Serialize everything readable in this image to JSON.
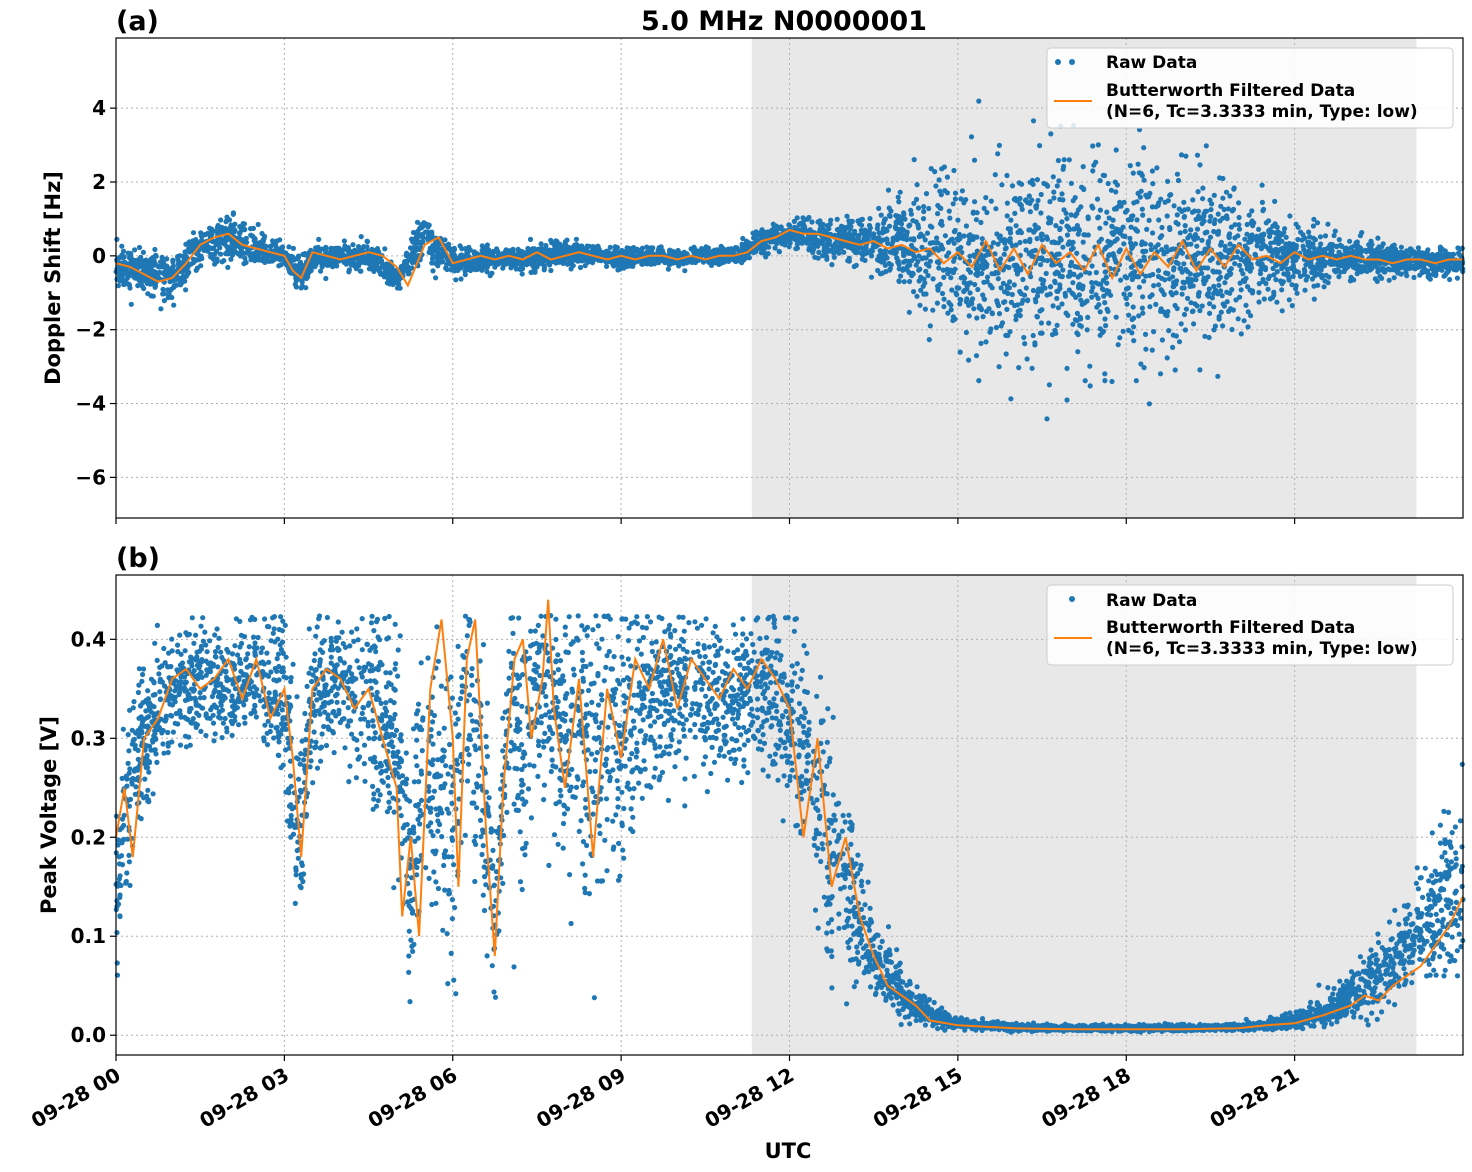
{
  "figure": {
    "title": "5.0 MHz N0000001",
    "xlabel": "UTC"
  },
  "colors": {
    "raw": "#1f77b4",
    "filtered": "#ff7f0e",
    "night_shade": "#e8e8e8"
  },
  "legend": {
    "raw": "Raw Data",
    "filtered_line1": "Butterworth Filtered Data",
    "filtered_line2": "(N=6, Tc=3.3333 min, Type: low)"
  },
  "chart_data": [
    {
      "type": "scatter",
      "panel_label": "(a)",
      "ylabel": "Doppler Shift [Hz]",
      "xlim_hours": [
        0,
        24
      ],
      "ylim": [
        -7.1,
        5.9
      ],
      "yticks": [
        4,
        2,
        0,
        -2,
        -4,
        -6
      ],
      "ytick_labels": [
        "4",
        "2",
        "0",
        "−2",
        "−4",
        "−6"
      ],
      "grid": true,
      "legend_position": "top-right",
      "shaded_interval_hours": [
        11.33,
        23.17
      ],
      "series": [
        {
          "name": "Raw Data",
          "style": "points",
          "x_hours": [
            0,
            0.5,
            1,
            1.5,
            2,
            2.5,
            3,
            3.3,
            3.5,
            4,
            4.5,
            5,
            5.5,
            6,
            6.5,
            7,
            7.5,
            8,
            8.5,
            9,
            9.5,
            10,
            10.5,
            11,
            11.5,
            12,
            12.5,
            13,
            13.5,
            14,
            14.5,
            15,
            15.5,
            16,
            16.5,
            17,
            17.5,
            18,
            18.5,
            19,
            19.5,
            20,
            20.5,
            21,
            21.5,
            22,
            22.5,
            23,
            23.5,
            24
          ],
          "center": [
            -0.3,
            -0.4,
            -0.6,
            0.2,
            0.5,
            0.2,
            0.0,
            -0.5,
            -0.1,
            0.0,
            0.0,
            -0.6,
            0.5,
            -0.2,
            -0.1,
            -0.1,
            -0.1,
            0.1,
            0.0,
            -0.1,
            0.0,
            -0.1,
            0.0,
            0.0,
            0.4,
            0.6,
            0.5,
            0.4,
            0.3,
            0.3,
            0.1,
            0.0,
            -0.1,
            -0.1,
            0.0,
            0.0,
            -0.2,
            -0.1,
            -0.1,
            -0.1,
            -0.1,
            -0.1,
            0.0,
            0.0,
            0.0,
            -0.1,
            -0.1,
            -0.1,
            -0.2,
            -0.2
          ],
          "spread": [
            0.5,
            0.5,
            0.5,
            0.5,
            0.6,
            0.4,
            0.3,
            0.5,
            0.35,
            0.3,
            0.3,
            0.4,
            0.5,
            0.35,
            0.3,
            0.3,
            0.3,
            0.3,
            0.25,
            0.25,
            0.2,
            0.2,
            0.2,
            0.2,
            0.3,
            0.3,
            0.4,
            0.5,
            0.7,
            1.0,
            1.5,
            1.9,
            2.1,
            2.3,
            2.4,
            2.5,
            2.6,
            2.5,
            2.4,
            2.2,
            2.0,
            1.6,
            1.2,
            0.9,
            0.6,
            0.5,
            0.4,
            0.4,
            0.35,
            0.35
          ]
        },
        {
          "name": "Butterworth Filtered Data",
          "style": "line",
          "x_hours": [
            0,
            0.25,
            0.5,
            0.75,
            1,
            1.25,
            1.5,
            1.75,
            2,
            2.25,
            2.5,
            2.75,
            3,
            3.15,
            3.3,
            3.5,
            3.75,
            4,
            4.25,
            4.5,
            4.75,
            5,
            5.2,
            5.5,
            5.75,
            6,
            6.25,
            6.5,
            6.75,
            7,
            7.25,
            7.5,
            7.75,
            8,
            8.25,
            8.5,
            8.75,
            9,
            9.25,
            9.5,
            9.75,
            10,
            10.25,
            10.5,
            10.75,
            11,
            11.25,
            11.5,
            11.75,
            12,
            12.25,
            12.5,
            12.75,
            13,
            13.25,
            13.5,
            13.75,
            14,
            14.25,
            14.5,
            14.75,
            15,
            15.25,
            15.5,
            15.75,
            16,
            16.25,
            16.5,
            16.75,
            17,
            17.25,
            17.5,
            17.75,
            18,
            18.25,
            18.5,
            18.75,
            19,
            19.25,
            19.5,
            19.75,
            20,
            20.25,
            20.5,
            20.75,
            21,
            21.25,
            21.5,
            21.75,
            22,
            22.25,
            22.5,
            22.75,
            23,
            23.25,
            23.5,
            23.75,
            24
          ],
          "y": [
            -0.2,
            -0.3,
            -0.5,
            -0.7,
            -0.6,
            -0.2,
            0.3,
            0.5,
            0.6,
            0.3,
            0.2,
            0.1,
            0.0,
            -0.4,
            -0.6,
            0.1,
            0.0,
            -0.1,
            0.0,
            0.1,
            0.0,
            -0.3,
            -0.8,
            0.3,
            0.5,
            -0.2,
            -0.1,
            0.0,
            -0.1,
            0.0,
            -0.1,
            0.1,
            -0.1,
            0.0,
            0.1,
            0.0,
            -0.1,
            0.0,
            -0.1,
            0.0,
            0.0,
            -0.1,
            0.0,
            -0.1,
            0.0,
            0.0,
            0.1,
            0.4,
            0.5,
            0.7,
            0.6,
            0.6,
            0.5,
            0.4,
            0.3,
            0.4,
            0.2,
            0.3,
            0.1,
            0.2,
            -0.2,
            0.1,
            -0.3,
            0.4,
            -0.4,
            0.2,
            -0.5,
            0.3,
            -0.2,
            0.1,
            -0.4,
            0.3,
            -0.6,
            0.2,
            -0.5,
            0.1,
            -0.3,
            0.4,
            -0.4,
            0.2,
            -0.3,
            0.3,
            -0.1,
            0.0,
            -0.2,
            0.1,
            -0.1,
            0.0,
            -0.1,
            0.0,
            -0.1,
            -0.1,
            -0.2,
            -0.1,
            -0.1,
            -0.2,
            -0.1,
            -0.1
          ]
        }
      ]
    },
    {
      "type": "scatter",
      "panel_label": "(b)",
      "ylabel": "Peak Voltage [V]",
      "xlim_hours": [
        0,
        24
      ],
      "ylim": [
        -0.02,
        0.465
      ],
      "yticks": [
        0.0,
        0.1,
        0.2,
        0.3,
        0.4
      ],
      "ytick_labels": [
        "0.0",
        "0.1",
        "0.2",
        "0.3",
        "0.4"
      ],
      "xtick_hours": [
        0,
        3,
        6,
        9,
        12,
        15,
        18,
        21
      ],
      "xtick_labels": [
        "09-28 00",
        "09-28 03",
        "09-28 06",
        "09-28 09",
        "09-28 12",
        "09-28 15",
        "09-28 18",
        "09-28 21"
      ],
      "grid": true,
      "legend_position": "top-right",
      "shaded_interval_hours": [
        11.33,
        23.17
      ],
      "series": [
        {
          "name": "Raw Data",
          "style": "points",
          "x_hours": [
            0,
            0.25,
            0.5,
            1,
            1.5,
            2,
            2.5,
            3,
            3.25,
            3.5,
            4,
            4.5,
            5,
            5.25,
            5.5,
            6,
            6.25,
            6.5,
            6.75,
            7,
            7.25,
            7.5,
            8,
            8.5,
            9,
            9.5,
            10,
            10.5,
            11,
            11.5,
            12,
            12.5,
            12.75,
            13,
            13.5,
            14,
            14.5,
            15,
            16,
            17,
            18,
            19,
            20,
            20.5,
            21,
            21.5,
            22,
            22.5,
            23,
            23.5,
            24
          ],
          "center": [
            0.15,
            0.25,
            0.3,
            0.35,
            0.36,
            0.35,
            0.37,
            0.35,
            0.2,
            0.34,
            0.36,
            0.33,
            0.3,
            0.15,
            0.3,
            0.2,
            0.33,
            0.28,
            0.1,
            0.33,
            0.3,
            0.35,
            0.3,
            0.28,
            0.3,
            0.33,
            0.35,
            0.34,
            0.34,
            0.35,
            0.33,
            0.25,
            0.2,
            0.15,
            0.08,
            0.04,
            0.02,
            0.012,
            0.008,
            0.007,
            0.007,
            0.007,
            0.008,
            0.01,
            0.015,
            0.025,
            0.04,
            0.06,
            0.09,
            0.12,
            0.16
          ],
          "spread": [
            0.08,
            0.08,
            0.06,
            0.05,
            0.05,
            0.05,
            0.05,
            0.08,
            0.1,
            0.07,
            0.06,
            0.08,
            0.1,
            0.1,
            0.12,
            0.15,
            0.1,
            0.13,
            0.08,
            0.08,
            0.12,
            0.08,
            0.12,
            0.13,
            0.13,
            0.08,
            0.07,
            0.07,
            0.07,
            0.06,
            0.08,
            0.1,
            0.1,
            0.08,
            0.04,
            0.02,
            0.01,
            0.005,
            0.003,
            0.003,
            0.003,
            0.003,
            0.003,
            0.005,
            0.008,
            0.012,
            0.02,
            0.03,
            0.04,
            0.06,
            0.1
          ]
        },
        {
          "name": "Butterworth Filtered Data",
          "style": "line",
          "x_hours": [
            0,
            0.15,
            0.3,
            0.5,
            0.75,
            1,
            1.25,
            1.5,
            1.75,
            2,
            2.25,
            2.5,
            2.75,
            3,
            3.15,
            3.3,
            3.5,
            3.75,
            4,
            4.25,
            4.5,
            4.75,
            5,
            5.1,
            5.25,
            5.4,
            5.6,
            5.8,
            6,
            6.1,
            6.25,
            6.4,
            6.6,
            6.75,
            6.9,
            7.1,
            7.25,
            7.4,
            7.6,
            7.7,
            7.8,
            8,
            8.25,
            8.5,
            8.75,
            9,
            9.25,
            9.5,
            9.75,
            10,
            10.25,
            10.5,
            10.75,
            11,
            11.25,
            11.5,
            11.75,
            12,
            12.25,
            12.5,
            12.75,
            13,
            13.25,
            13.5,
            13.75,
            14,
            14.25,
            14.5,
            15,
            16,
            17,
            18,
            19,
            20,
            20.5,
            21,
            21.5,
            22,
            22.25,
            22.5,
            22.75,
            23,
            23.25,
            23.5,
            23.75,
            24
          ],
          "y": [
            0.2,
            0.25,
            0.18,
            0.3,
            0.32,
            0.36,
            0.37,
            0.35,
            0.36,
            0.38,
            0.34,
            0.38,
            0.32,
            0.35,
            0.28,
            0.18,
            0.35,
            0.37,
            0.36,
            0.33,
            0.35,
            0.3,
            0.25,
            0.12,
            0.2,
            0.1,
            0.35,
            0.42,
            0.3,
            0.15,
            0.38,
            0.42,
            0.2,
            0.08,
            0.25,
            0.38,
            0.4,
            0.3,
            0.36,
            0.44,
            0.33,
            0.25,
            0.36,
            0.18,
            0.35,
            0.28,
            0.38,
            0.35,
            0.4,
            0.33,
            0.38,
            0.36,
            0.34,
            0.37,
            0.35,
            0.38,
            0.36,
            0.33,
            0.2,
            0.3,
            0.15,
            0.2,
            0.12,
            0.08,
            0.05,
            0.04,
            0.03,
            0.015,
            0.01,
            0.007,
            0.006,
            0.006,
            0.006,
            0.007,
            0.01,
            0.012,
            0.02,
            0.03,
            0.04,
            0.035,
            0.05,
            0.06,
            0.07,
            0.09,
            0.11,
            0.14
          ]
        }
      ]
    }
  ]
}
